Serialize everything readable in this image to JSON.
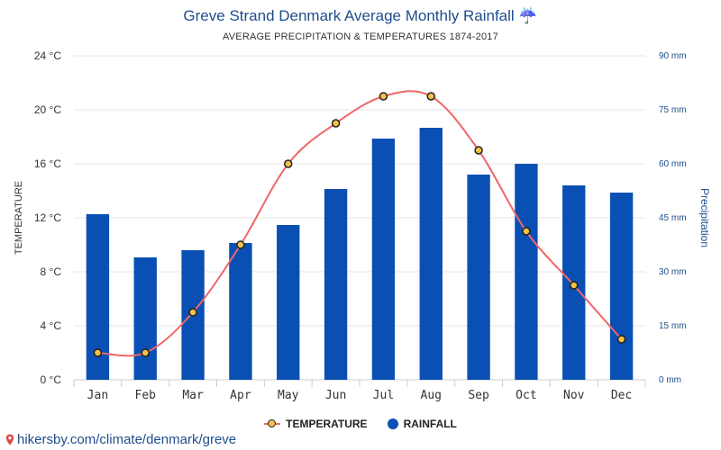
{
  "header": {
    "title": "Greve Strand Denmark Average Monthly Rainfall ☔",
    "subtitle": "AVERAGE PRECIPITATION & TEMPERATURES 1874-2017"
  },
  "chart_data": {
    "type": "bar",
    "categories": [
      "Jan",
      "Feb",
      "Mar",
      "Apr",
      "May",
      "Jun",
      "Jul",
      "Aug",
      "Sep",
      "Oct",
      "Nov",
      "Dec"
    ],
    "series": [
      {
        "name": "RAINFALL",
        "type": "bar",
        "axis": "right",
        "unit": "mm",
        "color": "#0a50b4",
        "values": [
          46,
          34,
          36,
          38,
          43,
          53,
          67,
          70,
          57,
          60,
          54,
          52
        ]
      },
      {
        "name": "TEMPERATURE",
        "type": "line",
        "axis": "left",
        "unit": "°C",
        "color": "#f06666",
        "marker_color": "#f4c04a",
        "values": [
          2,
          2,
          5,
          10,
          16,
          19,
          21,
          21,
          17,
          11,
          7,
          3
        ]
      }
    ],
    "y_left": {
      "label": "TEMPERATURE",
      "range": [
        0,
        24
      ],
      "ticks": [
        "0 °C",
        "4 °C",
        "8 °C",
        "12 °C",
        "16 °C",
        "20 °C",
        "24 °C"
      ]
    },
    "y_right": {
      "label": "Precipitation",
      "range": [
        0,
        90
      ],
      "ticks": [
        "0 mm",
        "15 mm",
        "30 mm",
        "45 mm",
        "60 mm",
        "75 mm",
        "90 mm"
      ]
    },
    "grid": true,
    "legend": "bottom-center"
  },
  "legend": {
    "temperature": "TEMPERATURE",
    "rainfall": "RAINFALL"
  },
  "footer": {
    "url": "hikersby.com/climate/denmark/greve",
    "icon": "location-pin-icon"
  }
}
